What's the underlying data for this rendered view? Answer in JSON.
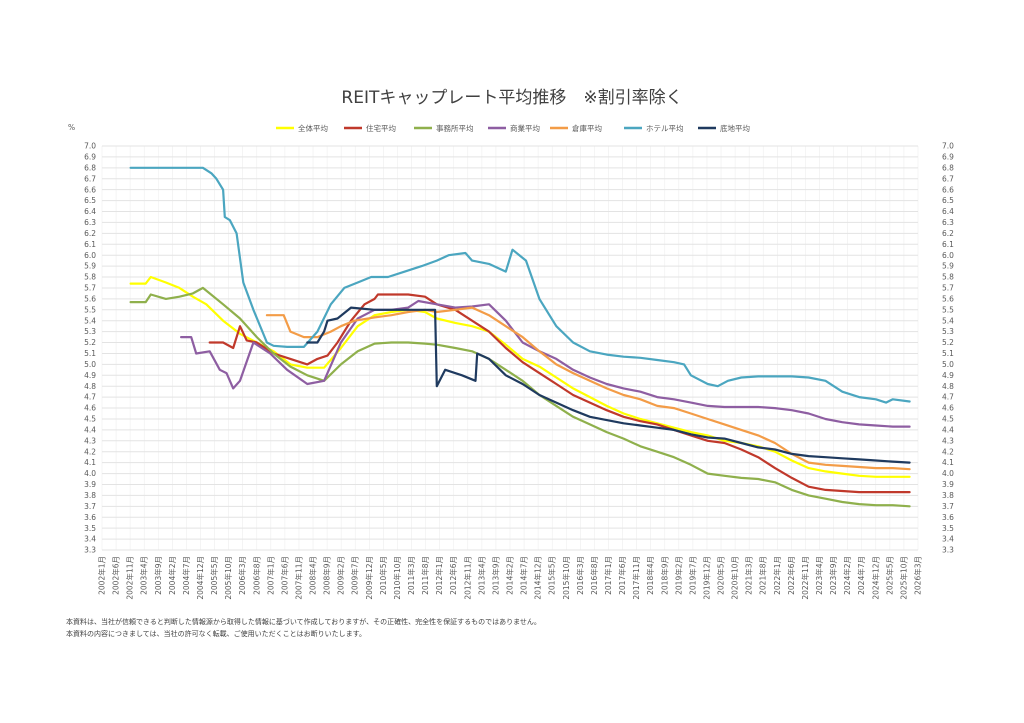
{
  "chart_data": {
    "type": "line",
    "title": "REITキャップレート平均推移　※割引率除く",
    "ylabel": "%",
    "ylim": [
      3.3,
      7.0
    ],
    "yticks": [
      "3.3",
      "3.4",
      "3.5",
      "3.6",
      "3.7",
      "3.8",
      "3.9",
      "4.0",
      "4.1",
      "4.2",
      "4.3",
      "4.4",
      "4.5",
      "4.6",
      "4.7",
      "4.8",
      "4.9",
      "5.0",
      "5.1",
      "5.2",
      "5.3",
      "5.4",
      "5.5",
      "5.6",
      "5.7",
      "5.8",
      "5.9",
      "6.0",
      "6.1",
      "6.2",
      "6.3",
      "6.4",
      "6.5",
      "6.6",
      "6.7",
      "6.8",
      "6.9",
      "7.0"
    ],
    "xrange": [
      2002.0,
      2026.25
    ],
    "xlabels": [
      "2002年1月",
      "2002年6月",
      "2002年11月",
      "2003年4月",
      "2003年9月",
      "2004年2月",
      "2004年7月",
      "2004年12月",
      "2005年5月",
      "2005年10月",
      "2006年3月",
      "2006年8月",
      "2007年1月",
      "2007年6月",
      "2007年11月",
      "2008年4月",
      "2008年9月",
      "2009年2月",
      "2009年7月",
      "2009年12月",
      "2010年5月",
      "2010年10月",
      "2011年3月",
      "2011年8月",
      "2012年1月",
      "2012年6月",
      "2012年11月",
      "2013年4月",
      "2013年9月",
      "2014年2月",
      "2014年7月",
      "2014年12月",
      "2015年5月",
      "2015年10月",
      "2016年3月",
      "2016年8月",
      "2017年1月",
      "2017年6月",
      "2017年11月",
      "2018年4月",
      "2018年9月",
      "2019年2月",
      "2019年7月",
      "2019年12月",
      "2020年5月",
      "2020年10月",
      "2021年3月",
      "2021年8月",
      "2022年1月",
      "2022年6月",
      "2022年11月",
      "2023年4月",
      "2023年9月",
      "2024年2月",
      "2024年7月",
      "2024年12月",
      "2025年5月",
      "2025年10月",
      "2026年3月"
    ],
    "legend_position": "top",
    "series": [
      {
        "name": "全体平均",
        "color": "#ffff00",
        "x": [
          2002.85,
          2003.3,
          2003.45,
          2003.9,
          2004.3,
          2004.7,
          2005.1,
          2005.6,
          2006.1,
          2006.6,
          2007.1,
          2007.6,
          2008.1,
          2008.6,
          2009.1,
          2009.6,
          2010.1,
          2010.6,
          2011.1,
          2011.6,
          2011.95,
          2012.5,
          2013.0,
          2013.5,
          2014.0,
          2014.5,
          2015.0,
          2015.5,
          2016.0,
          2016.5,
          2017.0,
          2017.5,
          2018.0,
          2018.5,
          2019.0,
          2019.5,
          2020.0,
          2020.5,
          2021.0,
          2021.5,
          2022.0,
          2022.5,
          2023.0,
          2023.5,
          2024.0,
          2024.5,
          2025.0,
          2025.5,
          2026.0
        ],
        "y": [
          5.74,
          5.74,
          5.8,
          5.75,
          5.7,
          5.62,
          5.55,
          5.4,
          5.28,
          5.2,
          5.12,
          5.0,
          4.97,
          4.97,
          5.15,
          5.35,
          5.45,
          5.48,
          5.5,
          5.48,
          5.42,
          5.38,
          5.35,
          5.3,
          5.18,
          5.05,
          4.98,
          4.88,
          4.78,
          4.7,
          4.62,
          4.55,
          4.5,
          4.46,
          4.42,
          4.38,
          4.35,
          4.3,
          4.28,
          4.25,
          4.2,
          4.12,
          4.05,
          4.02,
          4.0,
          3.98,
          3.97,
          3.97,
          3.97
        ]
      },
      {
        "name": "住宅平均",
        "color": "#c0392b",
        "x": [
          2005.2,
          2005.6,
          2005.9,
          2006.1,
          2006.3,
          2006.6,
          2007.1,
          2007.6,
          2008.1,
          2008.4,
          2008.7,
          2009.0,
          2009.4,
          2009.8,
          2010.1,
          2010.2,
          2010.6,
          2011.1,
          2011.6,
          2011.95,
          2012.5,
          2013.0,
          2013.5,
          2014.0,
          2014.5,
          2015.0,
          2015.5,
          2016.0,
          2016.5,
          2017.0,
          2017.5,
          2018.0,
          2018.5,
          2019.0,
          2019.5,
          2020.0,
          2020.5,
          2021.0,
          2021.5,
          2022.0,
          2022.5,
          2023.0,
          2023.5,
          2024.0,
          2024.5,
          2025.0,
          2025.5,
          2026.0
        ],
        "y": [
          5.2,
          5.2,
          5.15,
          5.35,
          5.22,
          5.2,
          5.1,
          5.05,
          5.0,
          5.05,
          5.08,
          5.2,
          5.4,
          5.55,
          5.6,
          5.64,
          5.64,
          5.64,
          5.62,
          5.55,
          5.5,
          5.4,
          5.3,
          5.15,
          5.02,
          4.92,
          4.82,
          4.72,
          4.65,
          4.58,
          4.52,
          4.48,
          4.45,
          4.4,
          4.35,
          4.3,
          4.28,
          4.22,
          4.15,
          4.05,
          3.96,
          3.88,
          3.85,
          3.84,
          3.83,
          3.83,
          3.83,
          3.83
        ]
      },
      {
        "name": "事務所平均",
        "color": "#8fb04c",
        "x": [
          2002.85,
          2003.3,
          2003.45,
          2003.9,
          2004.3,
          2004.7,
          2005.0,
          2005.6,
          2006.1,
          2006.6,
          2007.1,
          2007.6,
          2008.1,
          2008.6,
          2009.1,
          2009.6,
          2010.1,
          2010.6,
          2011.1,
          2011.6,
          2011.95,
          2012.5,
          2013.0,
          2013.5,
          2014.0,
          2014.5,
          2015.0,
          2015.5,
          2016.0,
          2016.5,
          2017.0,
          2017.5,
          2018.0,
          2018.5,
          2019.0,
          2019.5,
          2020.0,
          2020.5,
          2021.0,
          2021.5,
          2022.0,
          2022.5,
          2023.0,
          2023.5,
          2024.0,
          2024.5,
          2025.0,
          2025.5,
          2026.0
        ],
        "y": [
          5.57,
          5.57,
          5.64,
          5.6,
          5.62,
          5.65,
          5.7,
          5.55,
          5.42,
          5.25,
          5.1,
          4.98,
          4.9,
          4.85,
          5.0,
          5.12,
          5.19,
          5.2,
          5.2,
          5.19,
          5.18,
          5.15,
          5.12,
          5.05,
          4.95,
          4.85,
          4.72,
          4.62,
          4.52,
          4.45,
          4.38,
          4.32,
          4.25,
          4.2,
          4.15,
          4.08,
          4.0,
          3.98,
          3.96,
          3.95,
          3.92,
          3.85,
          3.8,
          3.77,
          3.74,
          3.72,
          3.71,
          3.71,
          3.7
        ]
      },
      {
        "name": "商業平均",
        "color": "#8e5ea2",
        "x": [
          2004.35,
          2004.65,
          2004.8,
          2005.2,
          2005.5,
          2005.7,
          2005.9,
          2006.1,
          2006.5,
          2007.0,
          2007.5,
          2008.1,
          2008.6,
          2009.1,
          2009.6,
          2010.1,
          2010.6,
          2011.1,
          2011.4,
          2011.95,
          2012.5,
          2013.0,
          2013.5,
          2014.0,
          2014.5,
          2015.0,
          2015.5,
          2016.0,
          2016.5,
          2017.0,
          2017.5,
          2018.0,
          2018.5,
          2019.0,
          2019.5,
          2020.0,
          2020.5,
          2021.0,
          2021.5,
          2022.0,
          2022.5,
          2023.0,
          2023.5,
          2024.0,
          2024.5,
          2025.0,
          2025.5,
          2026.0
        ],
        "y": [
          5.25,
          5.25,
          5.1,
          5.12,
          4.95,
          4.92,
          4.78,
          4.85,
          5.2,
          5.1,
          4.95,
          4.82,
          4.85,
          5.2,
          5.42,
          5.5,
          5.5,
          5.52,
          5.58,
          5.55,
          5.52,
          5.53,
          5.55,
          5.4,
          5.2,
          5.12,
          5.05,
          4.95,
          4.88,
          4.82,
          4.78,
          4.75,
          4.7,
          4.68,
          4.65,
          4.62,
          4.61,
          4.61,
          4.61,
          4.6,
          4.58,
          4.55,
          4.5,
          4.47,
          4.45,
          4.44,
          4.43,
          4.43
        ]
      },
      {
        "name": "倉庫平均",
        "color": "#f39c47",
        "x": [
          2006.9,
          2007.4,
          2007.6,
          2008.0,
          2008.4,
          2008.8,
          2009.1,
          2009.5,
          2010.1,
          2010.6,
          2011.1,
          2011.6,
          2011.95,
          2012.5,
          2013.0,
          2013.5,
          2014.0,
          2014.5,
          2015.0,
          2015.5,
          2016.0,
          2016.5,
          2017.0,
          2017.5,
          2018.0,
          2018.5,
          2019.0,
          2019.5,
          2020.0,
          2020.5,
          2021.0,
          2021.5,
          2022.0,
          2022.5,
          2023.0,
          2023.5,
          2024.0,
          2024.5,
          2025.0,
          2025.5,
          2026.0
        ],
        "y": [
          5.45,
          5.45,
          5.3,
          5.25,
          5.25,
          5.3,
          5.35,
          5.4,
          5.43,
          5.45,
          5.48,
          5.5,
          5.48,
          5.5,
          5.52,
          5.45,
          5.35,
          5.25,
          5.12,
          5.0,
          4.92,
          4.85,
          4.78,
          4.72,
          4.68,
          4.62,
          4.6,
          4.55,
          4.5,
          4.45,
          4.4,
          4.35,
          4.28,
          4.18,
          4.1,
          4.08,
          4.07,
          4.06,
          4.05,
          4.05,
          4.04
        ]
      },
      {
        "name": "ホテル平均",
        "color": "#4ba6c0",
        "x": [
          2002.85,
          2003.5,
          2004.0,
          2004.5,
          2005.0,
          2005.25,
          2005.4,
          2005.6,
          2005.65,
          2005.8,
          2006.0,
          2006.2,
          2006.5,
          2006.9,
          2007.1,
          2007.5,
          2008.0,
          2008.4,
          2008.8,
          2009.2,
          2009.6,
          2010.0,
          2010.5,
          2011.0,
          2011.5,
          2011.95,
          2012.3,
          2012.8,
          2013.0,
          2013.5,
          2014.0,
          2014.2,
          2014.6,
          2015.0,
          2015.5,
          2016.0,
          2016.5,
          2017.0,
          2017.5,
          2018.0,
          2018.5,
          2019.0,
          2019.3,
          2019.5,
          2020.0,
          2020.3,
          2020.6,
          2021.0,
          2021.5,
          2022.0,
          2022.5,
          2023.0,
          2023.5,
          2024.0,
          2024.5,
          2025.0,
          2025.3,
          2025.5,
          2026.0
        ],
        "y": [
          6.8,
          6.8,
          6.8,
          6.8,
          6.8,
          6.75,
          6.7,
          6.6,
          6.35,
          6.32,
          6.2,
          5.75,
          5.5,
          5.2,
          5.17,
          5.16,
          5.16,
          5.3,
          5.55,
          5.7,
          5.75,
          5.8,
          5.8,
          5.85,
          5.9,
          5.95,
          6.0,
          6.02,
          5.95,
          5.92,
          5.85,
          6.05,
          5.95,
          5.6,
          5.35,
          5.2,
          5.12,
          5.09,
          5.07,
          5.06,
          5.04,
          5.02,
          5.0,
          4.9,
          4.82,
          4.8,
          4.85,
          4.88,
          4.89,
          4.89,
          4.89,
          4.88,
          4.85,
          4.75,
          4.7,
          4.68,
          4.65,
          4.68,
          4.66
        ]
      },
      {
        "name": "底地平均",
        "color": "#1f3a5f",
        "x": [
          2008.1,
          2008.4,
          2008.6,
          2008.7,
          2009.0,
          2009.4,
          2010.1,
          2010.6,
          2011.1,
          2011.6,
          2011.9,
          2011.95,
          2012.2,
          2012.7,
          2013.1,
          2013.15,
          2013.5,
          2014.0,
          2014.5,
          2015.0,
          2015.5,
          2016.0,
          2016.5,
          2017.0,
          2017.5,
          2018.0,
          2018.5,
          2019.0,
          2019.5,
          2020.0,
          2020.5,
          2021.0,
          2021.5,
          2022.0,
          2022.5,
          2023.0,
          2023.5,
          2024.0,
          2024.5,
          2025.0,
          2025.5,
          2026.0
        ],
        "y": [
          5.2,
          5.2,
          5.3,
          5.4,
          5.42,
          5.52,
          5.5,
          5.5,
          5.5,
          5.5,
          5.5,
          4.8,
          4.95,
          4.9,
          4.85,
          5.1,
          5.05,
          4.9,
          4.82,
          4.72,
          4.65,
          4.58,
          4.52,
          4.49,
          4.46,
          4.44,
          4.42,
          4.4,
          4.36,
          4.33,
          4.32,
          4.28,
          4.24,
          4.22,
          4.18,
          4.16,
          4.15,
          4.14,
          4.13,
          4.12,
          4.11,
          4.1
        ]
      }
    ]
  },
  "notes": [
    "本資料は、当社が信頼できると判断した情報源から取得した情報に基づいて作成しておりますが、その正確性、完全性を保証するものではありません。",
    "本資料の内容につきましては、当社の許可なく転載、ご使用いただくことはお断りいたします。"
  ]
}
